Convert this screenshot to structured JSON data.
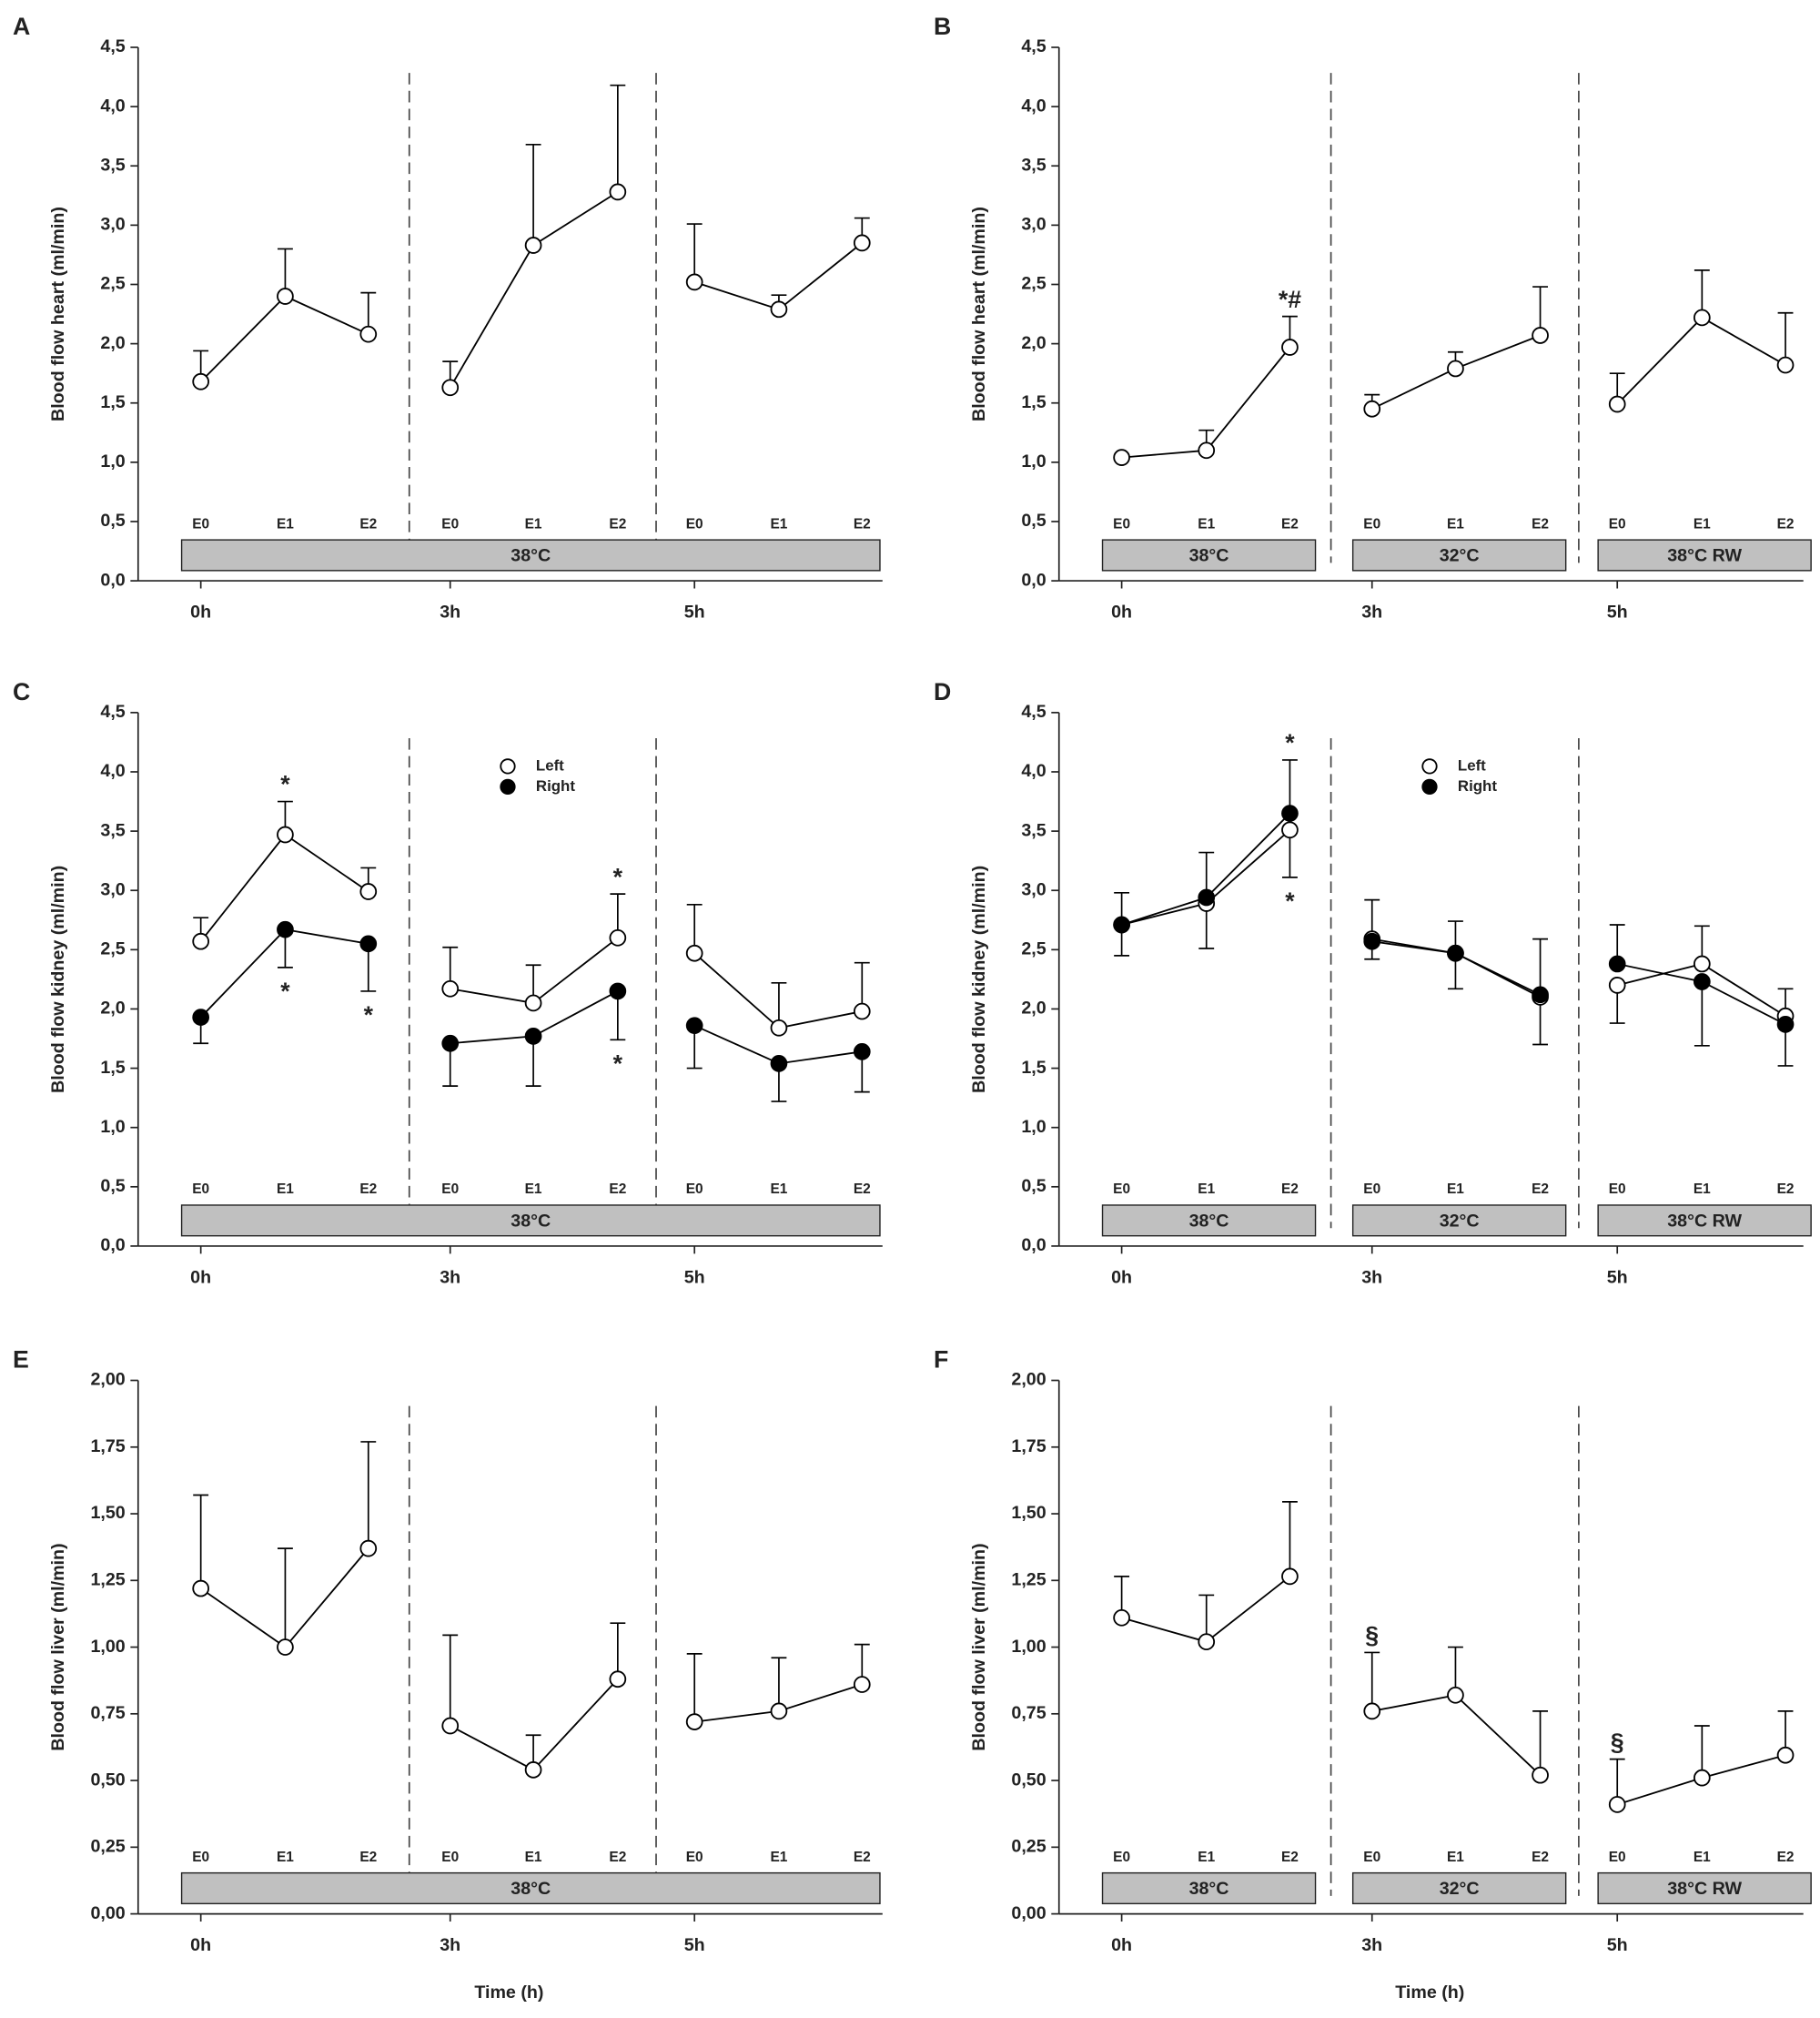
{
  "chart_data": [
    {
      "type": "line",
      "panel_label": "A",
      "ylabel": "Blood flow heart (ml/min)",
      "categories": [
        "E0",
        "E1",
        "E2",
        "E0",
        "E1",
        "E2",
        "E0",
        "E1",
        "E2"
      ],
      "xtick_labels": [
        "0h",
        "3h",
        "5h"
      ],
      "conditions": [
        "38°C"
      ],
      "ylim": [
        0,
        4.5
      ],
      "yticks": [
        {
          "value": 0,
          "label": "0,0"
        },
        {
          "value": 0.5,
          "label": "0,5"
        },
        {
          "value": 1,
          "label": "1,0"
        },
        {
          "value": 1.5,
          "label": "1,5"
        },
        {
          "value": 2,
          "label": "2,0"
        },
        {
          "value": 2.5,
          "label": "2,5"
        },
        {
          "value": 3,
          "label": "3,0"
        },
        {
          "value": 3.5,
          "label": "3,5"
        },
        {
          "value": 4,
          "label": "4,0"
        },
        {
          "value": 4.5,
          "label": "4,5"
        }
      ],
      "series": [
        {
          "color": "#000000",
          "marker_fill": "#ffffff",
          "values": [
            1.68,
            2.4,
            2.08,
            1.63,
            2.83,
            3.28,
            2.52,
            2.29,
            2.85
          ],
          "errors": [
            0.26,
            0.4,
            0.35,
            0.22,
            0.85,
            0.9,
            0.49,
            0.12,
            0.21
          ],
          "error_side": [
            "up",
            "up",
            "up",
            "up",
            "up",
            "up",
            "up",
            "up",
            "up"
          ]
        }
      ],
      "annotations": []
    },
    {
      "type": "line",
      "panel_label": "B",
      "ylabel": "Blood flow heart (ml/min)",
      "categories": [
        "E0",
        "E1",
        "E2",
        "E0",
        "E1",
        "E2",
        "E0",
        "E1",
        "E2"
      ],
      "xtick_labels": [
        "0h",
        "3h",
        "5h"
      ],
      "conditions": [
        "38°C",
        "32°C",
        "38°C RW"
      ],
      "ylim": [
        0,
        4.5
      ],
      "yticks": [
        {
          "value": 0,
          "label": "0,0"
        },
        {
          "value": 0.5,
          "label": "0,5"
        },
        {
          "value": 1,
          "label": "1,0"
        },
        {
          "value": 1.5,
          "label": "1,5"
        },
        {
          "value": 2,
          "label": "2,0"
        },
        {
          "value": 2.5,
          "label": "2,5"
        },
        {
          "value": 3,
          "label": "3,0"
        },
        {
          "value": 3.5,
          "label": "3,5"
        },
        {
          "value": 4,
          "label": "4,0"
        },
        {
          "value": 4.5,
          "label": "4,5"
        }
      ],
      "series": [
        {
          "color": "#000000",
          "marker_fill": "#ffffff",
          "values": [
            1.04,
            1.1,
            1.97,
            1.45,
            1.79,
            2.07,
            1.49,
            2.22,
            1.82
          ],
          "errors": [
            0.02,
            0.17,
            0.26,
            0.12,
            0.14,
            0.41,
            0.26,
            0.4,
            0.44
          ],
          "error_side": [
            "up",
            "up",
            "up",
            "up",
            "up",
            "up",
            "up",
            "up",
            "up"
          ]
        }
      ],
      "annotations": [
        {
          "text": "*#",
          "series": 0,
          "index": 2,
          "side": "up"
        }
      ]
    },
    {
      "type": "line",
      "panel_label": "C",
      "ylabel": "Blood flow kidney (ml/min)",
      "categories": [
        "E0",
        "E1",
        "E2",
        "E0",
        "E1",
        "E2",
        "E0",
        "E1",
        "E2"
      ],
      "xtick_labels": [
        "0h",
        "3h",
        "5h"
      ],
      "conditions": [
        "38°C"
      ],
      "ylim": [
        0,
        4.5
      ],
      "yticks": [
        {
          "value": 0,
          "label": "0,0"
        },
        {
          "value": 0.5,
          "label": "0,5"
        },
        {
          "value": 1,
          "label": "1,0"
        },
        {
          "value": 1.5,
          "label": "1,5"
        },
        {
          "value": 2,
          "label": "2,0"
        },
        {
          "value": 2.5,
          "label": "2,5"
        },
        {
          "value": 3,
          "label": "3,0"
        },
        {
          "value": 3.5,
          "label": "3,5"
        },
        {
          "value": 4,
          "label": "4,0"
        },
        {
          "value": 4.5,
          "label": "4,5"
        }
      ],
      "series": [
        {
          "name": "Left",
          "color": "#000000",
          "marker_fill": "#ffffff",
          "values": [
            2.57,
            3.47,
            2.99,
            2.17,
            2.05,
            2.6,
            2.47,
            1.84,
            1.98
          ],
          "errors": [
            0.2,
            0.28,
            0.2,
            0.35,
            0.32,
            0.37,
            0.41,
            0.38,
            0.41
          ],
          "error_side": [
            "up",
            "up",
            "up",
            "up",
            "up",
            "up",
            "up",
            "up",
            "up"
          ]
        },
        {
          "name": "Right",
          "color": "#000000",
          "marker_fill": "#000000",
          "values": [
            1.93,
            2.67,
            2.55,
            1.71,
            1.77,
            2.15,
            1.86,
            1.54,
            1.64
          ],
          "errors": [
            0.22,
            0.32,
            0.4,
            0.36,
            0.42,
            0.41,
            0.36,
            0.32,
            0.34
          ],
          "error_side": [
            "down",
            "down",
            "down",
            "down",
            "down",
            "down",
            "down",
            "down",
            "down"
          ]
        }
      ],
      "annotations": [
        {
          "text": "*",
          "series": 0,
          "index": 1,
          "side": "up"
        },
        {
          "text": "*",
          "series": 1,
          "index": 1,
          "side": "down"
        },
        {
          "text": "*",
          "series": 1,
          "index": 2,
          "side": "down"
        },
        {
          "text": "*",
          "series": 0,
          "index": 5,
          "side": "up"
        },
        {
          "text": "*",
          "series": 1,
          "index": 5,
          "side": "down"
        }
      ]
    },
    {
      "type": "line",
      "panel_label": "D",
      "ylabel": "Blood flow kidney (ml/min)",
      "categories": [
        "E0",
        "E1",
        "E2",
        "E0",
        "E1",
        "E2",
        "E0",
        "E1",
        "E2"
      ],
      "xtick_labels": [
        "0h",
        "3h",
        "5h"
      ],
      "conditions": [
        "38°C",
        "32°C",
        "38°C RW"
      ],
      "ylim": [
        0,
        4.5
      ],
      "yticks": [
        {
          "value": 0,
          "label": "0,0"
        },
        {
          "value": 0.5,
          "label": "0,5"
        },
        {
          "value": 1,
          "label": "1,0"
        },
        {
          "value": 1.5,
          "label": "1,5"
        },
        {
          "value": 2,
          "label": "2,0"
        },
        {
          "value": 2.5,
          "label": "2,5"
        },
        {
          "value": 3,
          "label": "3,0"
        },
        {
          "value": 3.5,
          "label": "3,5"
        },
        {
          "value": 4,
          "label": "4,0"
        },
        {
          "value": 4.5,
          "label": "4,5"
        }
      ],
      "series": [
        {
          "name": "Left",
          "color": "#000000",
          "marker_fill": "#ffffff",
          "values": [
            2.71,
            2.89,
            3.51,
            2.59,
            2.47,
            2.1,
            2.2,
            2.38,
            1.94
          ],
          "errors": [
            0.27,
            0.43,
            0.4,
            0.33,
            0.27,
            0.4,
            0.32,
            0.32,
            0.23
          ],
          "error_side": [
            "up",
            "up",
            "down",
            "up",
            "up",
            "down",
            "down",
            "up",
            "up"
          ]
        },
        {
          "name": "Right",
          "color": "#000000",
          "marker_fill": "#000000",
          "values": [
            2.71,
            2.94,
            3.65,
            2.57,
            2.47,
            2.12,
            2.38,
            2.23,
            1.87
          ],
          "errors": [
            0.26,
            0.43,
            0.45,
            0.15,
            0.3,
            0.47,
            0.33,
            0.54,
            0.35
          ],
          "error_side": [
            "down",
            "down",
            "up",
            "down",
            "down",
            "up",
            "up",
            "down",
            "down"
          ]
        }
      ],
      "annotations": [
        {
          "text": "*",
          "series": 1,
          "index": 2,
          "side": "up"
        },
        {
          "text": "*",
          "series": 0,
          "index": 2,
          "side": "down"
        }
      ]
    },
    {
      "type": "line",
      "panel_label": "E",
      "ylabel": "Blood flow liver (ml/min)",
      "xlabel": "Time (h)",
      "categories": [
        "E0",
        "E1",
        "E2",
        "E0",
        "E1",
        "E2",
        "E0",
        "E1",
        "E2"
      ],
      "xtick_labels": [
        "0h",
        "3h",
        "5h"
      ],
      "conditions": [
        "38°C"
      ],
      "ylim": [
        0,
        2
      ],
      "yticks": [
        {
          "value": 0,
          "label": "0,00"
        },
        {
          "value": 0.25,
          "label": "0,25"
        },
        {
          "value": 0.5,
          "label": "0,50"
        },
        {
          "value": 0.75,
          "label": "0,75"
        },
        {
          "value": 1,
          "label": "1,00"
        },
        {
          "value": 1.25,
          "label": "1,25"
        },
        {
          "value": 1.5,
          "label": "1,50"
        },
        {
          "value": 1.75,
          "label": "1,75"
        },
        {
          "value": 2,
          "label": "2,00"
        }
      ],
      "series": [
        {
          "color": "#000000",
          "marker_fill": "#ffffff",
          "values": [
            1.22,
            1.0,
            1.37,
            0.705,
            0.54,
            0.88,
            0.72,
            0.76,
            0.86
          ],
          "errors": [
            0.35,
            0.37,
            0.4,
            0.34,
            0.13,
            0.21,
            0.255,
            0.2,
            0.15
          ],
          "error_side": [
            "up",
            "up",
            "up",
            "up",
            "up",
            "up",
            "up",
            "up",
            "up"
          ]
        }
      ],
      "annotations": []
    },
    {
      "type": "line",
      "panel_label": "F",
      "ylabel": "Blood flow liver (ml/min)",
      "xlabel": "Time (h)",
      "categories": [
        "E0",
        "E1",
        "E2",
        "E0",
        "E1",
        "E2",
        "E0",
        "E1",
        "E2"
      ],
      "xtick_labels": [
        "0h",
        "3h",
        "5h"
      ],
      "conditions": [
        "38°C",
        "32°C",
        "38°C RW"
      ],
      "ylim": [
        0,
        2
      ],
      "yticks": [
        {
          "value": 0,
          "label": "0,00"
        },
        {
          "value": 0.25,
          "label": "0,25"
        },
        {
          "value": 0.5,
          "label": "0,50"
        },
        {
          "value": 0.75,
          "label": "0,75"
        },
        {
          "value": 1,
          "label": "1,00"
        },
        {
          "value": 1.25,
          "label": "1,25"
        },
        {
          "value": 1.5,
          "label": "1,50"
        },
        {
          "value": 1.75,
          "label": "1,75"
        },
        {
          "value": 2,
          "label": "2,00"
        }
      ],
      "series": [
        {
          "color": "#000000",
          "marker_fill": "#ffffff",
          "values": [
            1.11,
            1.02,
            1.265,
            0.76,
            0.82,
            0.52,
            0.41,
            0.51,
            0.595
          ],
          "errors": [
            0.155,
            0.175,
            0.28,
            0.22,
            0.18,
            0.24,
            0.17,
            0.195,
            0.165
          ],
          "error_side": [
            "up",
            "up",
            "up",
            "up",
            "up",
            "up",
            "up",
            "up",
            "up"
          ]
        }
      ],
      "annotations": [
        {
          "text": "§",
          "series": 0,
          "index": 3,
          "side": "up"
        },
        {
          "text": "§",
          "series": 0,
          "index": 6,
          "side": "up"
        }
      ]
    }
  ]
}
